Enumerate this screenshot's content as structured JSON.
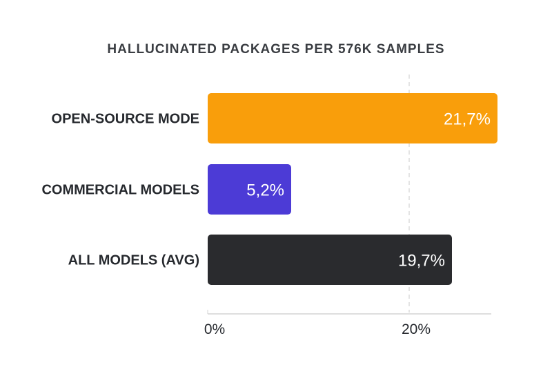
{
  "chart_data": {
    "type": "bar",
    "orientation": "horizontal",
    "title": "HALLUCINATED PACKAGES PER 576K SAMPLES",
    "categories": [
      "OPEN-SOURCE MODE",
      "COMMERCIAL MODELS",
      "ALL MODELS (AVG)"
    ],
    "values": [
      21.7,
      5.2,
      19.7
    ],
    "data_labels": [
      "21,7%",
      "5,2%",
      "19,7%"
    ],
    "colors": [
      "#f99e0b",
      "#4c3bd6",
      "#2a2b2e"
    ],
    "x_ticks": [
      {
        "value": 0,
        "label": "0%"
      },
      {
        "value": 20,
        "label": "20%"
      }
    ],
    "reference_line": {
      "value": 20,
      "style": "dashed"
    },
    "xlabel": "",
    "ylabel": "",
    "grid": false,
    "legend": "none"
  }
}
